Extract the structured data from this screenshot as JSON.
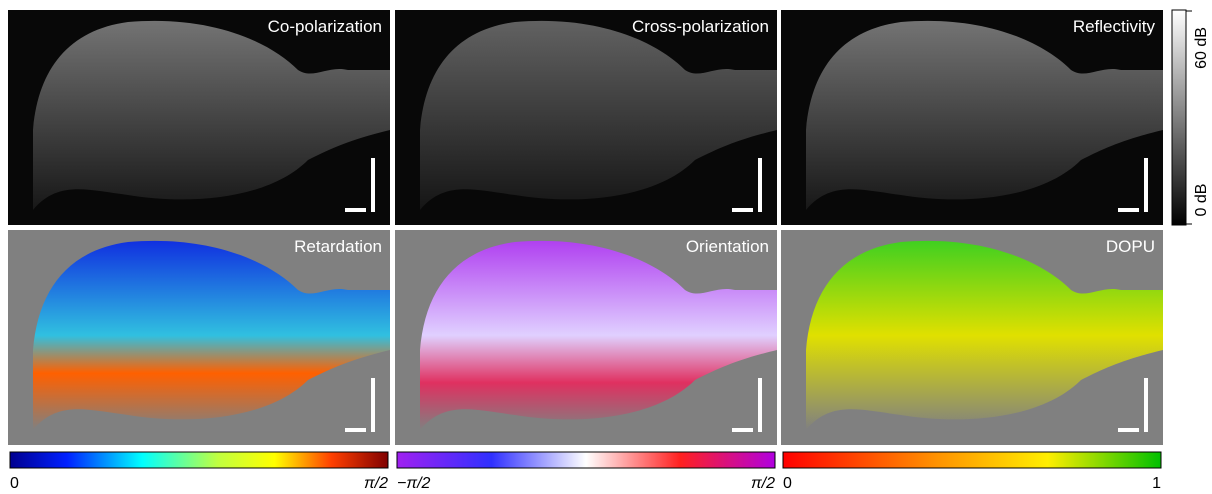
{
  "panels": [
    {
      "label": "Co-polarization"
    },
    {
      "label": "Cross-polarization"
    },
    {
      "label": "Reflectivity"
    },
    {
      "label": "Retardation"
    },
    {
      "label": "Orientation"
    },
    {
      "label": "DOPU"
    }
  ],
  "intensity_bar": {
    "labels": [
      "60 dB",
      "0 dB"
    ]
  },
  "colorbars": [
    {
      "labels": [
        "0",
        "π/2"
      ]
    },
    {
      "labels": [
        "−π/2",
        "π/2"
      ]
    },
    {
      "labels": [
        "0",
        "1"
      ]
    }
  ]
}
